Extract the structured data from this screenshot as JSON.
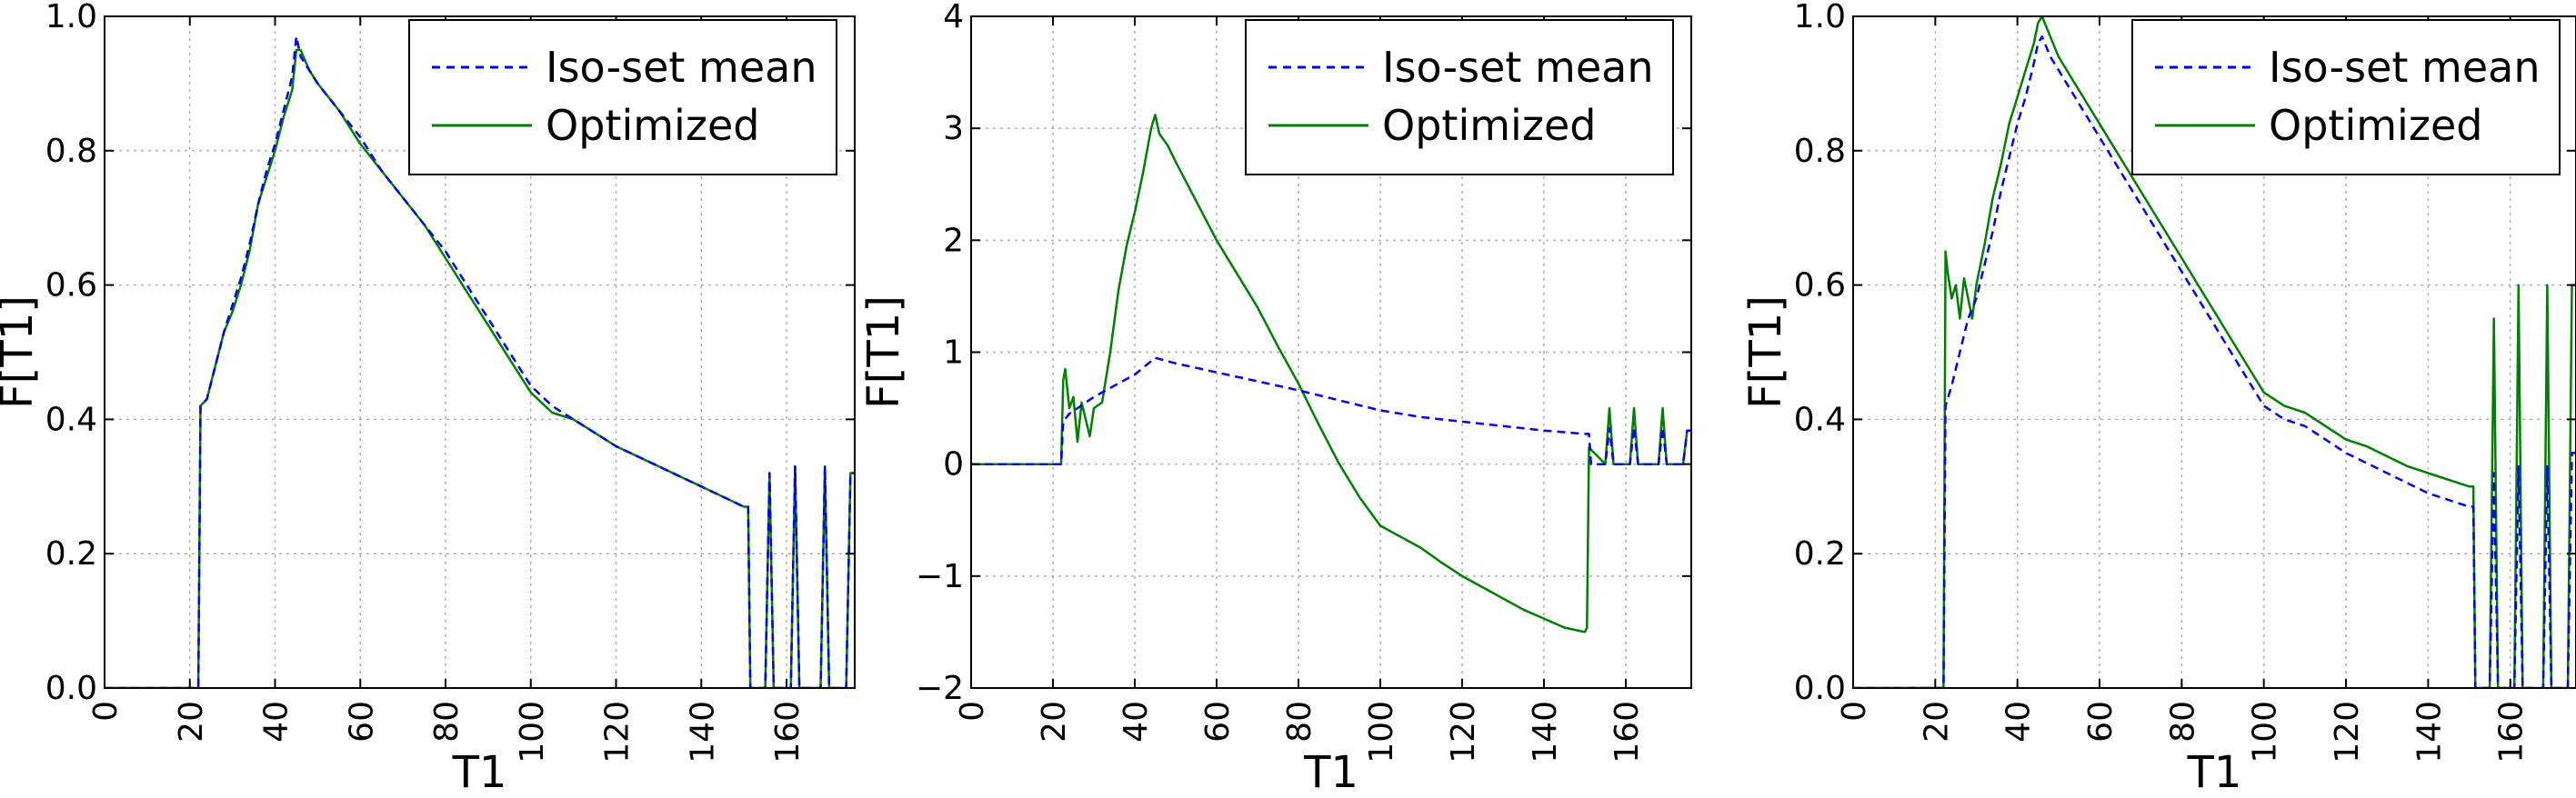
{
  "chart_data": [
    {
      "type": "line",
      "xlabel": "T1",
      "ylabel": "F[T1]",
      "xlim": [
        0,
        176
      ],
      "ylim": [
        0.0,
        1.0
      ],
      "xticks": [
        "0",
        "20",
        "40",
        "60",
        "80",
        "100",
        "120",
        "140",
        "160"
      ],
      "yticks": [
        "0.0",
        "0.2",
        "0.4",
        "0.6",
        "0.8",
        "1.0"
      ],
      "grid": true,
      "legend_position": "upper-right",
      "colors": {
        "iso": "#0000ff",
        "opt": "#008000"
      },
      "series": [
        {
          "name": "Iso-set mean",
          "style": "dashed",
          "x": [
            0,
            22,
            22.5,
            24,
            26,
            28,
            30,
            32,
            34,
            36,
            38,
            40,
            42,
            44,
            45,
            46,
            48,
            50,
            55,
            60,
            65,
            70,
            75,
            80,
            85,
            90,
            95,
            100,
            105,
            110,
            115,
            120,
            125,
            130,
            135,
            140,
            145,
            150,
            151,
            151.5,
            155,
            156,
            157,
            158,
            160,
            161,
            162,
            163,
            165,
            168,
            169,
            170,
            172,
            173,
            174,
            175,
            176
          ],
          "y": [
            0,
            0,
            0.42,
            0.43,
            0.48,
            0.53,
            0.57,
            0.61,
            0.66,
            0.72,
            0.77,
            0.81,
            0.86,
            0.91,
            0.97,
            0.94,
            0.92,
            0.9,
            0.86,
            0.82,
            0.77,
            0.73,
            0.69,
            0.65,
            0.6,
            0.55,
            0.5,
            0.45,
            0.42,
            0.4,
            0.38,
            0.36,
            0.345,
            0.33,
            0.315,
            0.3,
            0.285,
            0.27,
            0.27,
            0,
            0,
            0.32,
            0,
            0,
            0,
            0,
            0.33,
            0,
            0,
            0,
            0.33,
            0,
            0,
            0,
            0,
            0.32,
            0.32
          ]
        },
        {
          "name": "Optimized",
          "style": "solid",
          "x": [
            0,
            22,
            22.5,
            24,
            26,
            28,
            30,
            32,
            34,
            36,
            38,
            40,
            42,
            44,
            45,
            46,
            48,
            50,
            55,
            60,
            65,
            70,
            75,
            80,
            85,
            90,
            95,
            100,
            105,
            110,
            115,
            120,
            125,
            130,
            135,
            140,
            145,
            150,
            151,
            151.5,
            155,
            156,
            157,
            158,
            160,
            161,
            162,
            163,
            165,
            168,
            169,
            170,
            172,
            173,
            174,
            175,
            176
          ],
          "y": [
            0,
            0,
            0.42,
            0.43,
            0.48,
            0.53,
            0.56,
            0.6,
            0.65,
            0.72,
            0.76,
            0.8,
            0.85,
            0.89,
            0.95,
            0.95,
            0.92,
            0.9,
            0.86,
            0.81,
            0.77,
            0.73,
            0.69,
            0.64,
            0.59,
            0.54,
            0.49,
            0.44,
            0.41,
            0.4,
            0.38,
            0.36,
            0.345,
            0.33,
            0.315,
            0.3,
            0.285,
            0.27,
            0.27,
            0,
            0,
            0.32,
            0,
            0,
            0,
            0,
            0.33,
            0,
            0,
            0,
            0.33,
            0,
            0,
            0,
            0,
            0.32,
            0.32
          ]
        }
      ]
    },
    {
      "type": "line",
      "xlabel": "T1",
      "ylabel": "F[T1]",
      "xlim": [
        0,
        176
      ],
      "ylim": [
        -2,
        4
      ],
      "xticks": [
        "0",
        "20",
        "40",
        "60",
        "80",
        "100",
        "120",
        "140",
        "160"
      ],
      "yticks": [
        "−2",
        "−1",
        "0",
        "1",
        "2",
        "3",
        "4"
      ],
      "grid": true,
      "legend_position": "upper-right",
      "colors": {
        "iso": "#0000ff",
        "opt": "#008000"
      },
      "series": [
        {
          "name": "Iso-set mean",
          "style": "dashed",
          "x": [
            0,
            22,
            22.5,
            24,
            26,
            28,
            30,
            35,
            40,
            45,
            50,
            55,
            60,
            70,
            80,
            90,
            100,
            110,
            120,
            130,
            140,
            150,
            151,
            151.5,
            155,
            156,
            157,
            158,
            160,
            161,
            162,
            163,
            165,
            168,
            169,
            170,
            172,
            173,
            174,
            175,
            176
          ],
          "y": [
            0,
            0,
            0.38,
            0.45,
            0.5,
            0.55,
            0.6,
            0.7,
            0.8,
            0.95,
            0.9,
            0.86,
            0.82,
            0.74,
            0.66,
            0.57,
            0.48,
            0.42,
            0.38,
            0.34,
            0.3,
            0.27,
            0.27,
            0,
            0,
            0.32,
            0,
            0,
            0,
            0,
            0.33,
            0,
            0,
            0,
            0.33,
            0,
            0,
            0,
            0,
            0.3,
            0.3
          ]
        },
        {
          "name": "Optimized",
          "style": "solid",
          "x": [
            0,
            22,
            22.5,
            23,
            24,
            25,
            26,
            27,
            28,
            29,
            30,
            32,
            34,
            36,
            38,
            40,
            42,
            44,
            45,
            46,
            48,
            50,
            55,
            60,
            65,
            70,
            75,
            80,
            85,
            90,
            95,
            100,
            105,
            110,
            115,
            120,
            125,
            130,
            135,
            140,
            145,
            150,
            150.5,
            151,
            155,
            156,
            157,
            158,
            160,
            161,
            162,
            163,
            165,
            168,
            169,
            170,
            172,
            173,
            174,
            175,
            176
          ],
          "y": [
            0,
            0,
            0.75,
            0.85,
            0.5,
            0.6,
            0.2,
            0.55,
            0.4,
            0.25,
            0.5,
            0.55,
            1.0,
            1.55,
            1.95,
            2.25,
            2.6,
            3.0,
            3.12,
            2.95,
            2.85,
            2.7,
            2.35,
            2.0,
            1.7,
            1.4,
            1.05,
            0.72,
            0.35,
            0.0,
            -0.3,
            -0.55,
            -0.65,
            -0.75,
            -0.88,
            -1.0,
            -1.1,
            -1.2,
            -1.3,
            -1.38,
            -1.46,
            -1.5,
            -1.46,
            0.15,
            0,
            0.5,
            0,
            0,
            0,
            0,
            0.5,
            0,
            0,
            0,
            0.5,
            0,
            0,
            0,
            0,
            0.3,
            0.3
          ]
        }
      ]
    },
    {
      "type": "line",
      "xlabel": "T1",
      "ylabel": "F[T1]",
      "xlim": [
        0,
        176
      ],
      "ylim": [
        0.0,
        1.0
      ],
      "xticks": [
        "0",
        "20",
        "40",
        "60",
        "80",
        "100",
        "120",
        "140",
        "160"
      ],
      "yticks": [
        "0.0",
        "0.2",
        "0.4",
        "0.6",
        "0.8",
        "1.0"
      ],
      "grid": true,
      "legend_position": "upper-right",
      "colors": {
        "iso": "#0000ff",
        "opt": "#008000"
      },
      "series": [
        {
          "name": "Iso-set mean",
          "style": "dashed",
          "x": [
            0,
            22,
            22.5,
            24,
            26,
            28,
            30,
            32,
            34,
            36,
            38,
            40,
            42,
            44,
            45,
            46,
            48,
            50,
            55,
            60,
            65,
            70,
            75,
            80,
            85,
            90,
            95,
            100,
            105,
            110,
            115,
            120,
            125,
            130,
            135,
            140,
            145,
            150,
            151,
            151.5,
            155,
            156,
            157,
            158,
            160,
            161,
            162,
            163,
            165,
            168,
            169,
            170,
            172,
            173,
            174,
            175,
            176
          ],
          "y": [
            0,
            0,
            0.42,
            0.45,
            0.5,
            0.55,
            0.58,
            0.63,
            0.68,
            0.74,
            0.79,
            0.84,
            0.88,
            0.93,
            0.96,
            0.97,
            0.94,
            0.92,
            0.87,
            0.82,
            0.77,
            0.72,
            0.67,
            0.62,
            0.57,
            0.52,
            0.47,
            0.42,
            0.4,
            0.39,
            0.37,
            0.35,
            0.335,
            0.32,
            0.305,
            0.29,
            0.28,
            0.27,
            0.27,
            0,
            0,
            0.32,
            0,
            0,
            0,
            0,
            0.33,
            0,
            0,
            0,
            0.33,
            0,
            0,
            0,
            0,
            0.35,
            0.35
          ]
        },
        {
          "name": "Optimized",
          "style": "solid",
          "x": [
            0,
            22,
            22.5,
            23,
            24,
            25,
            26,
            27,
            28,
            29,
            30,
            32,
            34,
            36,
            38,
            40,
            42,
            44,
            45,
            46,
            48,
            50,
            55,
            60,
            65,
            70,
            75,
            80,
            85,
            90,
            95,
            100,
            105,
            110,
            115,
            120,
            125,
            130,
            135,
            140,
            145,
            150,
            151,
            151.5,
            155,
            156,
            157,
            158,
            160,
            161,
            162,
            163,
            165,
            168,
            169,
            170,
            172,
            173,
            174,
            175,
            176
          ],
          "y": [
            0,
            0,
            0.65,
            0.62,
            0.58,
            0.6,
            0.55,
            0.61,
            0.58,
            0.55,
            0.6,
            0.66,
            0.73,
            0.78,
            0.84,
            0.88,
            0.92,
            0.96,
            0.99,
            1.0,
            0.97,
            0.94,
            0.89,
            0.84,
            0.79,
            0.74,
            0.69,
            0.64,
            0.59,
            0.54,
            0.49,
            0.44,
            0.42,
            0.41,
            0.39,
            0.37,
            0.36,
            0.345,
            0.33,
            0.32,
            0.31,
            0.3,
            0.3,
            0,
            0,
            0.55,
            0,
            0,
            0,
            0,
            0.6,
            0,
            0,
            0,
            0.6,
            0,
            0,
            0,
            0,
            0.6,
            0.6
          ]
        }
      ]
    }
  ]
}
